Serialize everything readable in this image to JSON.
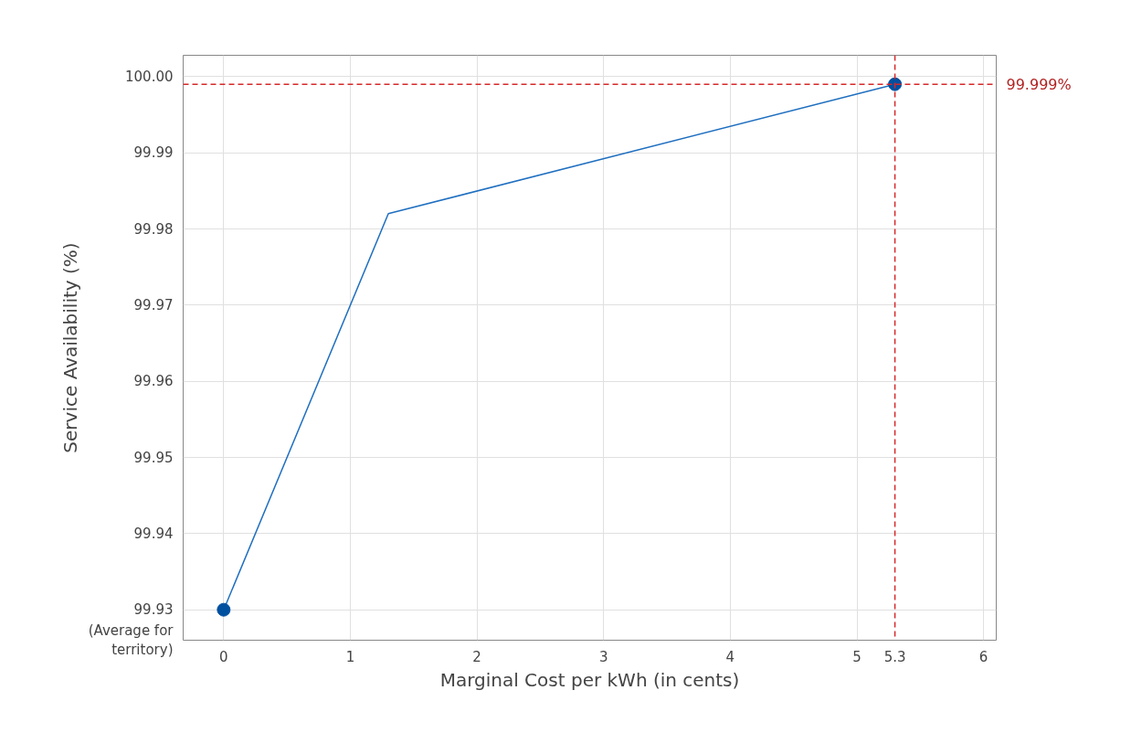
{
  "chart_data": {
    "type": "line",
    "xlabel": "Marginal Cost per kWh (in cents)",
    "ylabel": "Service Availability (%)",
    "series": [
      {
        "type": "line",
        "color": "#1f6fc0",
        "x": [
          0,
          1.3,
          5.3
        ],
        "values": [
          99.93,
          99.982,
          99.999
        ],
        "marker": "none"
      },
      {
        "type": "scatter",
        "color": "#0050a0",
        "x": [
          0,
          5.3
        ],
        "values": [
          99.93,
          99.999
        ],
        "marker": "circle"
      }
    ],
    "xlim": [
      -0.32,
      6.1
    ],
    "ylim": [
      99.926,
      100.0028
    ],
    "xticks": [
      0,
      1,
      2,
      3,
      4,
      5,
      6
    ],
    "yticks": [
      {
        "value": 99.93,
        "label": "99.93"
      },
      {
        "value": 99.94,
        "label": "99.94"
      },
      {
        "value": 99.95,
        "label": "99.95"
      },
      {
        "value": 99.96,
        "label": "99.96"
      },
      {
        "value": 99.97,
        "label": "99.97"
      },
      {
        "value": 99.98,
        "label": "99.98"
      },
      {
        "value": 99.99,
        "label": "99.99"
      },
      {
        "value": 100.0,
        "label": "100.00"
      }
    ],
    "ref_lines": [
      {
        "axis": "x",
        "value": 5.3,
        "label": "5.3",
        "color": "#d62728",
        "line_style": "dashed"
      },
      {
        "axis": "y",
        "value": 99.999,
        "label": "99.999%",
        "color": "#d62728",
        "line_style": "dashed"
      }
    ],
    "annotations": [
      "(Average for territory)"
    ],
    "grid": true
  }
}
